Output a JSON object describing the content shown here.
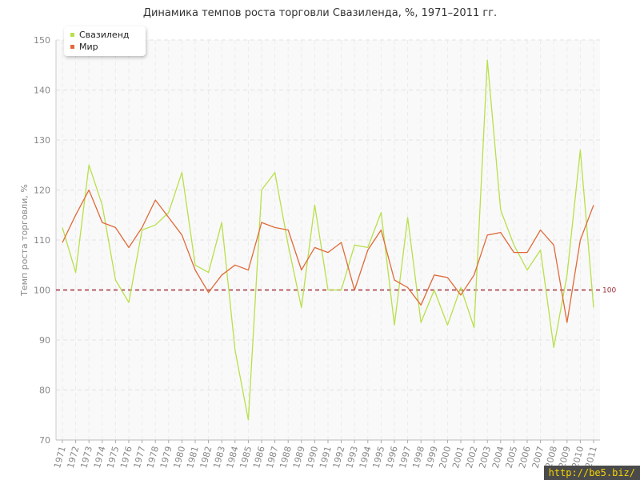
{
  "chart_data": {
    "type": "line",
    "title": "Динамика темпов роста торговли Свазиленда, %, 1971–2011 гг.",
    "ylabel": "Темп роста торговли, %",
    "xlabel": "",
    "ylim": [
      70,
      150
    ],
    "yticks": [
      70,
      80,
      90,
      100,
      110,
      120,
      130,
      140,
      150
    ],
    "grid": true,
    "legend_position": "top-left",
    "x": [
      "1971",
      "1972",
      "1973",
      "1974",
      "1975",
      "1976",
      "1977",
      "1978",
      "1979",
      "1980",
      "1981",
      "1982",
      "1983",
      "1984",
      "1985",
      "1986",
      "1987",
      "1988",
      "1989",
      "1990",
      "1991",
      "1992",
      "1993",
      "1994",
      "1995",
      "1996",
      "1997",
      "1998",
      "1999",
      "2000",
      "2001",
      "2002",
      "2003",
      "2004",
      "2005",
      "2006",
      "2007",
      "2008",
      "2009",
      "2010",
      "2011"
    ],
    "series": [
      {
        "name": "Свазиленд",
        "color": "#b8e04a",
        "values": [
          112.5,
          103.5,
          125.0,
          117.0,
          102.0,
          97.5,
          112.0,
          113.0,
          115.5,
          123.5,
          105.0,
          103.5,
          113.5,
          88.0,
          74.0,
          120.0,
          123.5,
          109.0,
          96.5,
          117.0,
          100.0,
          100.0,
          109.0,
          108.5,
          115.5,
          93.0,
          114.5,
          93.5,
          100.0,
          93.0,
          100.5,
          92.5,
          146.0,
          116.0,
          109.0,
          104.0,
          108.0,
          88.5,
          103.0,
          128.0,
          96.5
        ]
      },
      {
        "name": "Мир",
        "color": "#e06a3a",
        "values": [
          109.5,
          115.0,
          120.0,
          113.5,
          112.5,
          108.5,
          112.5,
          118.0,
          114.5,
          111.0,
          104.0,
          99.5,
          103.0,
          105.0,
          104.0,
          113.5,
          112.5,
          112.0,
          104.0,
          108.5,
          107.5,
          109.5,
          100.0,
          108.0,
          112.0,
          102.0,
          100.5,
          97.0,
          103.0,
          102.5,
          99.0,
          103.0,
          111.0,
          111.5,
          107.5,
          107.5,
          112.0,
          109.0,
          93.5,
          110.0,
          117.0
        ]
      }
    ],
    "reference_line": {
      "value": 100,
      "label": "100",
      "color": "#a0303a"
    }
  },
  "watermark": "http://be5.biz/"
}
